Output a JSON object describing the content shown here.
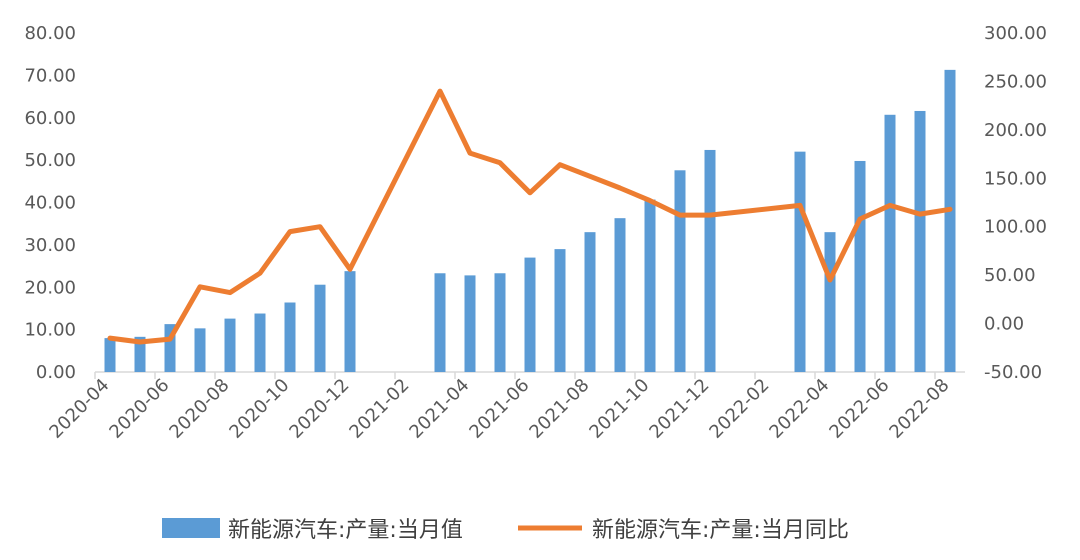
{
  "chart_data": {
    "type": "bar+line",
    "categories": [
      "2020-04",
      "2020-05",
      "2020-06",
      "2020-07",
      "2020-08",
      "2020-09",
      "2020-10",
      "2020-11",
      "2020-12",
      "2021-01",
      "2021-02",
      "2021-03",
      "2021-04",
      "2021-05",
      "2021-06",
      "2021-07",
      "2021-08",
      "2021-09",
      "2021-10",
      "2021-11",
      "2021-12",
      "2022-01",
      "2022-02",
      "2022-03",
      "2022-04",
      "2022-05",
      "2022-06",
      "2022-07",
      "2022-08"
    ],
    "x_tick_labels": [
      "2020-04",
      "2020-06",
      "2020-08",
      "2020-10",
      "2020-12",
      "2021-02",
      "2021-04",
      "2021-06",
      "2021-08",
      "2021-10",
      "2021-12",
      "2022-02",
      "2022-04",
      "2022-06",
      "2022-08"
    ],
    "y_left": {
      "min": 0,
      "max": 80,
      "ticks": [
        "0.00",
        "10.00",
        "20.00",
        "30.00",
        "40.00",
        "50.00",
        "60.00",
        "70.00",
        "80.00"
      ]
    },
    "y_right": {
      "min": -50,
      "max": 300,
      "ticks": [
        "-50.00",
        "0.00",
        "50.00",
        "100.00",
        "150.00",
        "200.00",
        "250.00",
        "300.00"
      ]
    },
    "series": [
      {
        "name": "新能源汽车:产量:当月值",
        "type": "bar",
        "axis": "left",
        "color": "#5B9BD5",
        "values": [
          8.0,
          8.3,
          11.3,
          10.3,
          12.6,
          13.8,
          16.4,
          20.6,
          23.8,
          null,
          null,
          23.3,
          22.8,
          23.3,
          27.0,
          29.0,
          33.0,
          36.3,
          40.7,
          47.6,
          52.4,
          null,
          null,
          52.0,
          33.0,
          49.8,
          60.7,
          61.6,
          71.3
        ]
      },
      {
        "name": "新能源汽车:产量:当月同比",
        "type": "line",
        "axis": "right",
        "color": "#ED7D31",
        "values": [
          -15,
          -19,
          -16,
          38,
          32,
          52,
          95,
          100,
          56,
          null,
          null,
          240,
          176,
          166,
          135,
          164,
          152,
          140,
          127,
          112,
          112,
          null,
          null,
          122,
          45,
          108,
          122,
          113,
          118
        ]
      }
    ],
    "legend": {
      "position": "bottom",
      "bar_label": "新能源汽车:产量:当月值",
      "line_label": "新能源汽车:产量:当月同比"
    }
  }
}
